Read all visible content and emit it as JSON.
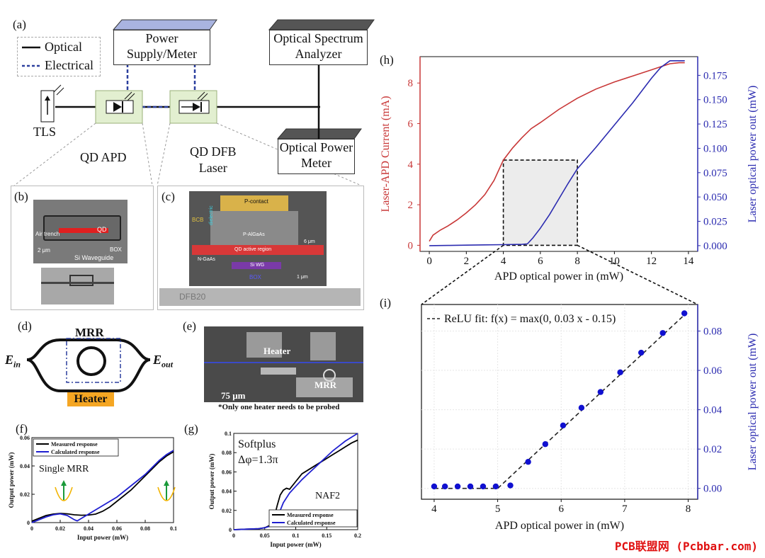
{
  "panel_labels": {
    "a": "(a)",
    "b": "(b)",
    "c": "(c)",
    "d": "(d)",
    "e": "(e)",
    "f": "(f)",
    "g": "(g)",
    "h": "(h)",
    "i": "(i)"
  },
  "setup": {
    "legend_optical": "Optical",
    "legend_electrical": "Electrical",
    "power_supply_line1": "Power",
    "power_supply_line2": "Supply/Meter",
    "osa_line1": "Optical Spectrum",
    "osa_line2": "Analyzer",
    "opm_line1": "Optical Power",
    "opm_line2": "Meter",
    "tls": "TLS",
    "qd_apd": "QD APD",
    "qd_dfb_line1": "QD DFB",
    "qd_dfb_line2": "Laser"
  },
  "sem_b": {
    "qd": "QD",
    "air_trench": "Air trench",
    "scale": "2 μm",
    "box": "BOX",
    "si_waveguide": "Si Waveguide"
  },
  "sem_c": {
    "p_contact": "P-contact",
    "bcb": "BCB",
    "dielectric": "dielectric",
    "p_algaas": "P-AlGaAs",
    "thickness": "6 μm",
    "active": "QD active region",
    "n_gaas": "N-GaAs",
    "si_wg": "Si WG",
    "box": "BOX",
    "scale": "1 μm",
    "bottom_label": "DFB20"
  },
  "mrr_d": {
    "mrr": "MRR",
    "ein_main": "E",
    "ein_sub": "in",
    "eout_main": "E",
    "eout_sub": "out",
    "heater": "Heater"
  },
  "photo_e": {
    "heater": "Heater",
    "mrr": "MRR",
    "scale": "75 μm",
    "note": "*Only one heater needs to be probed"
  },
  "colors": {
    "red_curve": "#c83737",
    "blue_curve": "#2b2bb0",
    "dot": "#1010d0",
    "heater_fill": "#f5a623"
  },
  "chart_data": [
    {
      "id": "f",
      "type": "line",
      "xlabel": "Input power (mW)",
      "ylabel": "Output power (mW)",
      "annotation": "Single MRR",
      "xlim": [
        0,
        0.1
      ],
      "ylim": [
        0,
        0.06
      ],
      "xticks": [
        "0",
        "0.02",
        "0.04",
        "0.06",
        "0.08",
        "0.1"
      ],
      "yticks": [
        "0",
        "0.02",
        "0.04",
        "0.06"
      ],
      "series": [
        {
          "name": "Measured response",
          "color": "#000000",
          "x": [
            0,
            0.005,
            0.01,
            0.015,
            0.02,
            0.025,
            0.03,
            0.035,
            0.04,
            0.045,
            0.05,
            0.055,
            0.06,
            0.065,
            0.07,
            0.075,
            0.08,
            0.085,
            0.09,
            0.095,
            0.1
          ],
          "y": [
            0.001,
            0.003,
            0.005,
            0.006,
            0.0065,
            0.0062,
            0.0055,
            0.0052,
            0.0053,
            0.006,
            0.008,
            0.011,
            0.015,
            0.019,
            0.023,
            0.028,
            0.033,
            0.038,
            0.043,
            0.047,
            0.05
          ]
        },
        {
          "name": "Calculated response",
          "color": "#1f1fd0",
          "x": [
            0,
            0.005,
            0.01,
            0.015,
            0.02,
            0.025,
            0.03,
            0.032,
            0.035,
            0.04,
            0.045,
            0.05,
            0.055,
            0.06,
            0.065,
            0.07,
            0.075,
            0.08,
            0.085,
            0.09,
            0.095,
            0.1
          ],
          "y": [
            0.0,
            0.002,
            0.004,
            0.0055,
            0.0062,
            0.005,
            0.002,
            0.0012,
            0.003,
            0.006,
            0.009,
            0.012,
            0.015,
            0.018,
            0.022,
            0.026,
            0.03,
            0.034,
            0.039,
            0.044,
            0.048,
            0.051
          ]
        }
      ]
    },
    {
      "id": "g",
      "type": "line",
      "xlabel": "Input power (mW)",
      "ylabel": "Output power (mW)",
      "annotation_line1": "Softplus",
      "annotation_line2": "Δφ=1.3π",
      "annotation_right": "NAF2",
      "xlim": [
        0,
        0.2
      ],
      "ylim": [
        0,
        0.1
      ],
      "xticks": [
        "0",
        "0.05",
        "0.1",
        "0.15",
        "0.2"
      ],
      "yticks": [
        "0",
        "0.02",
        "0.04",
        "0.06",
        "0.08",
        "0.1"
      ],
      "series": [
        {
          "name": "Measured response",
          "color": "#000000",
          "x": [
            0,
            0.02,
            0.04,
            0.05,
            0.06,
            0.065,
            0.07,
            0.075,
            0.08,
            0.085,
            0.09,
            0.1,
            0.11,
            0.12,
            0.13,
            0.14,
            0.15,
            0.16,
            0.17,
            0.18,
            0.19,
            0.2
          ],
          "y": [
            0,
            0.0005,
            0.001,
            0.002,
            0.005,
            0.012,
            0.025,
            0.036,
            0.041,
            0.043,
            0.042,
            0.05,
            0.058,
            0.062,
            0.066,
            0.07,
            0.074,
            0.078,
            0.082,
            0.086,
            0.09,
            0.093
          ]
        },
        {
          "name": "Calculated response",
          "color": "#1f1fd0",
          "x": [
            0,
            0.02,
            0.04,
            0.05,
            0.06,
            0.065,
            0.07,
            0.075,
            0.08,
            0.09,
            0.1,
            0.11,
            0.12,
            0.13,
            0.14,
            0.15,
            0.16,
            0.17,
            0.18,
            0.19,
            0.2
          ],
          "y": [
            0,
            0.0005,
            0.001,
            0.002,
            0.004,
            0.007,
            0.012,
            0.02,
            0.028,
            0.038,
            0.045,
            0.052,
            0.058,
            0.064,
            0.07,
            0.076,
            0.082,
            0.087,
            0.092,
            0.096,
            0.1
          ]
        }
      ]
    },
    {
      "id": "h",
      "type": "line",
      "xlabel": "APD optical power in (mW)",
      "ylabel_left": "Laser-APD Current (mA)",
      "ylabel_right": "Laser optical power out (mW)",
      "xlim": [
        -0.5,
        14.5
      ],
      "ylim_left": [
        -0.3,
        9.3
      ],
      "ylim_right": [
        -0.0059,
        0.1942
      ],
      "xticks": [
        "0",
        "2",
        "4",
        "6",
        "8",
        "10",
        "12",
        "14"
      ],
      "yticks_left": [
        "0",
        "2",
        "4",
        "6",
        "8"
      ],
      "yticks_right": [
        "0.000",
        "0.025",
        "0.050",
        "0.075",
        "0.100",
        "0.125",
        "0.150",
        "0.175"
      ],
      "zoom_box": {
        "x": [
          4,
          8
        ],
        "y_left": [
          0,
          4.2
        ]
      },
      "series": [
        {
          "name": "Laser-APD Current",
          "axis": "left",
          "color": "#c83737",
          "x": [
            0,
            0.2,
            0.6,
            1,
            1.5,
            2,
            2.5,
            3,
            3.5,
            4,
            4.5,
            5,
            5.5,
            6,
            7,
            8,
            9,
            10,
            11,
            12,
            12.5,
            13,
            13.5,
            13.8
          ],
          "y": [
            0.2,
            0.5,
            0.75,
            0.95,
            1.25,
            1.6,
            2.0,
            2.5,
            3.2,
            4.2,
            4.8,
            5.3,
            5.75,
            6.05,
            6.7,
            7.25,
            7.7,
            8.05,
            8.35,
            8.65,
            8.8,
            8.95,
            9.0,
            9.0
          ]
        },
        {
          "name": "Laser optical power out",
          "axis": "right",
          "color": "#2b2bb0",
          "x": [
            0,
            1,
            2,
            3,
            4,
            5,
            5.3,
            5.6,
            6,
            6.5,
            7,
            7.5,
            8,
            9,
            10,
            11,
            12,
            12.5,
            13,
            13.5,
            13.8
          ],
          "y": [
            0,
            0.0002,
            0.0005,
            0.0008,
            0.001,
            0.0013,
            0.0018,
            0.008,
            0.018,
            0.032,
            0.048,
            0.064,
            0.079,
            0.101,
            0.124,
            0.147,
            0.172,
            0.183,
            0.19,
            0.19,
            0.19
          ]
        }
      ]
    },
    {
      "id": "i",
      "type": "scatter",
      "xlabel": "APD optical power in (mW)",
      "ylabel_right": "Laser optical power out (mW)",
      "fit_label": "ReLU fit: f(x) = max(0, 0.03 x - 0.15)",
      "xlim": [
        3.8,
        8.15
      ],
      "ylim": [
        -0.0055,
        0.0935
      ],
      "xticks": [
        "4",
        "5",
        "6",
        "7",
        "8"
      ],
      "yticks": [
        "0.00",
        "0.02",
        "0.04",
        "0.06",
        "0.08"
      ],
      "points": {
        "x": [
          4.0,
          4.17,
          4.37,
          4.57,
          4.77,
          4.97,
          5.2,
          5.48,
          5.75,
          6.03,
          6.32,
          6.62,
          6.93,
          7.26,
          7.6,
          7.94
        ],
        "y": [
          0.001,
          0.001,
          0.001,
          0.001,
          0.001,
          0.001,
          0.0015,
          0.0135,
          0.0225,
          0.032,
          0.041,
          0.049,
          0.059,
          0.069,
          0.079,
          0.089
        ]
      },
      "fit": {
        "x": [
          4.0,
          5.0,
          7.98
        ],
        "y": [
          0.0,
          0.0,
          0.0894
        ]
      }
    }
  ]
}
